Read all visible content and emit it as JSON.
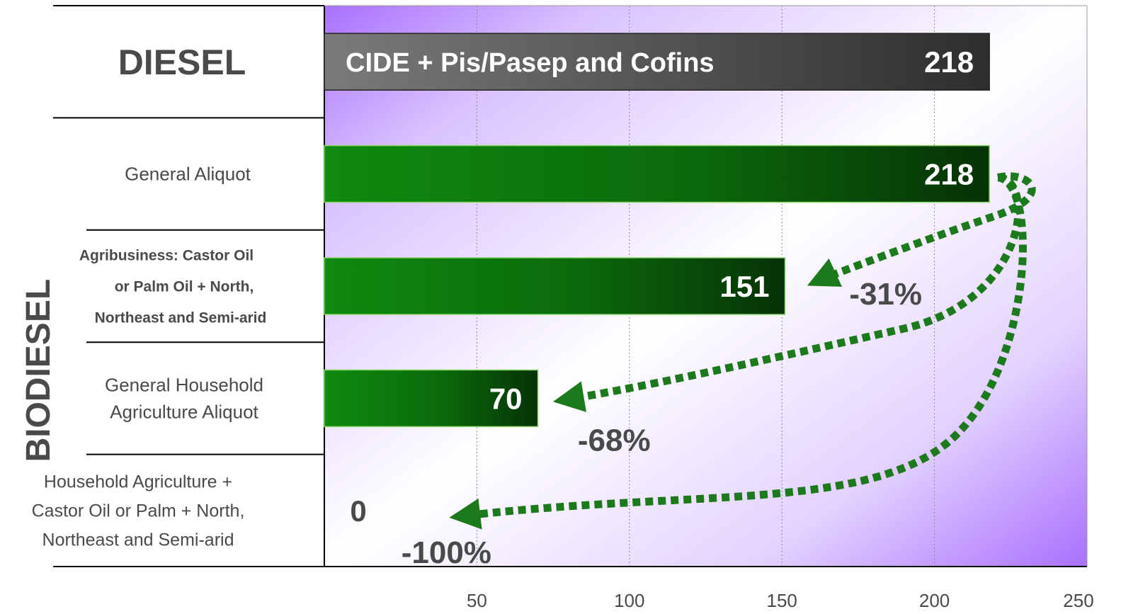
{
  "chart_data": {
    "type": "bar",
    "orientation": "horizontal",
    "groups": [
      {
        "label": "DIESEL",
        "rows": [
          0
        ]
      },
      {
        "label": "BIODIESEL",
        "rows": [
          1,
          2,
          3,
          4
        ]
      }
    ],
    "categories": [
      [
        "DIESEL"
      ],
      [
        "General Aliquot"
      ],
      [
        "Agribusiness: Castor Oil",
        "or Palm Oil + North,",
        "Northeast and Semi-arid"
      ],
      [
        "General Household",
        "Agriculture Aliquot"
      ],
      [
        "Household Agriculture +",
        "Castor Oil or Palm + North,",
        "Northeast and Semi-arid"
      ]
    ],
    "values": [
      218,
      218,
      151,
      70,
      0
    ],
    "value_labels": [
      "218",
      "218",
      "151",
      "70",
      "0"
    ],
    "bar_labels": [
      "CIDE + Pis/Pasep and Cofins",
      "",
      "",
      "",
      ""
    ],
    "annotations": [
      {
        "text": "-31%",
        "target_row": 2
      },
      {
        "text": "-68%",
        "target_row": 3
      },
      {
        "text": "-100%",
        "target_row": 4
      }
    ],
    "xlim": [
      0,
      250
    ],
    "xticks": [
      50,
      100,
      150,
      200,
      250
    ],
    "grid": "vertical-dotted",
    "colors": {
      "diesel_bar": "#4a4a4a",
      "biodiesel_bar": "#0f7a0f",
      "arrow": "#1c7a1c",
      "background_accent": "#a970ff",
      "text": "#4a4a4a"
    }
  }
}
